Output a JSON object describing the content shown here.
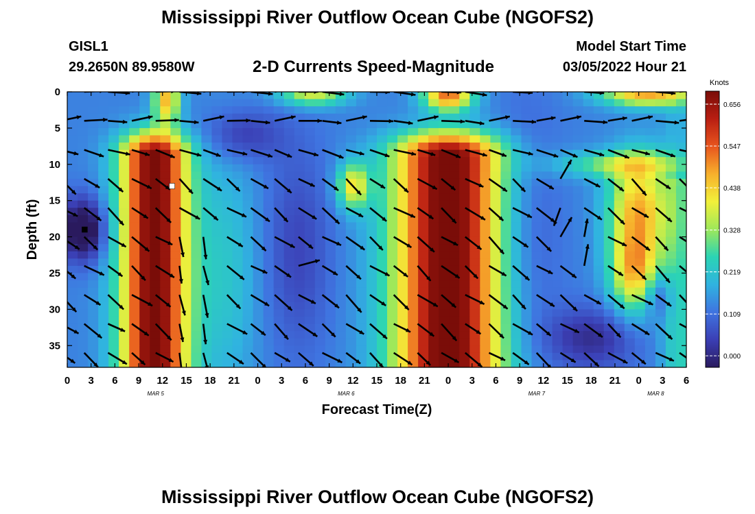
{
  "header": {
    "title": "Mississippi River Outflow Ocean Cube (NGOFS2)",
    "station_id": "GISL1",
    "station_coords": "29.2650N  89.9580W",
    "variable_title": "2-D Currents Speed-Magnitude",
    "model_start_label": "Model Start Time",
    "model_start_value": "03/05/2022 Hour 21"
  },
  "footer": {
    "next_title": "Mississippi River Outflow Ocean Cube (NGOFS2)"
  },
  "chart_data": {
    "type": "heatmap",
    "title": "2-D Currents Speed-Magnitude",
    "xlabel": "Forecast Time(Z)",
    "ylabel": "Depth (ft)",
    "x_tick_labels": [
      "0",
      "3",
      "6",
      "9",
      "12",
      "15",
      "18",
      "21",
      "0",
      "3",
      "6",
      "9",
      "12",
      "15",
      "18",
      "21",
      "0",
      "3",
      "6",
      "9",
      "12",
      "15",
      "18",
      "21",
      "0",
      "3",
      "6"
    ],
    "x_range_hours": [
      0,
      78
    ],
    "date_labels": [
      {
        "label": "MAR 5",
        "hour": 12
      },
      {
        "label": "MAR 6",
        "hour": 36
      },
      {
        "label": "MAR 7",
        "hour": 60
      },
      {
        "label": "MAR 8",
        "hour": 75
      }
    ],
    "y_ticks": [
      0,
      5,
      10,
      15,
      20,
      25,
      30,
      35
    ],
    "y_range_ft": [
      0,
      38
    ],
    "y_inverted": true,
    "colorbar": {
      "unit": "Knots",
      "tick_labels": [
        "0.656",
        "0.547",
        "0.438",
        "0.328",
        "0.219",
        "0.109",
        "0.000"
      ],
      "tick_values": [
        0.656,
        0.547,
        0.438,
        0.328,
        0.219,
        0.109,
        0.0
      ],
      "range": [
        -0.03,
        0.69
      ],
      "palette": [
        "#2a1a5e",
        "#3b3fb5",
        "#3f74e0",
        "#30b3e0",
        "#2bd4b4",
        "#9ee85a",
        "#f2f03a",
        "#f7b02c",
        "#e8551e",
        "#b81e12",
        "#7a0d08"
      ]
    },
    "markers": [
      {
        "name": "min-marker",
        "hour": 2.2,
        "depth": 19,
        "color": "#000000"
      },
      {
        "name": "max-marker",
        "hour": 13.2,
        "depth": 13,
        "color": "#ffffff"
      }
    ],
    "vector_grid": {
      "hours": [
        0,
        3,
        6,
        9,
        12,
        15,
        18,
        21,
        24,
        27,
        30,
        33,
        36,
        39,
        42,
        45,
        48,
        51,
        54,
        57,
        60,
        63,
        66,
        69,
        72,
        75,
        78
      ],
      "depths_ft": [
        0,
        4,
        8,
        12,
        16,
        20,
        24,
        28,
        32,
        36
      ]
    }
  }
}
